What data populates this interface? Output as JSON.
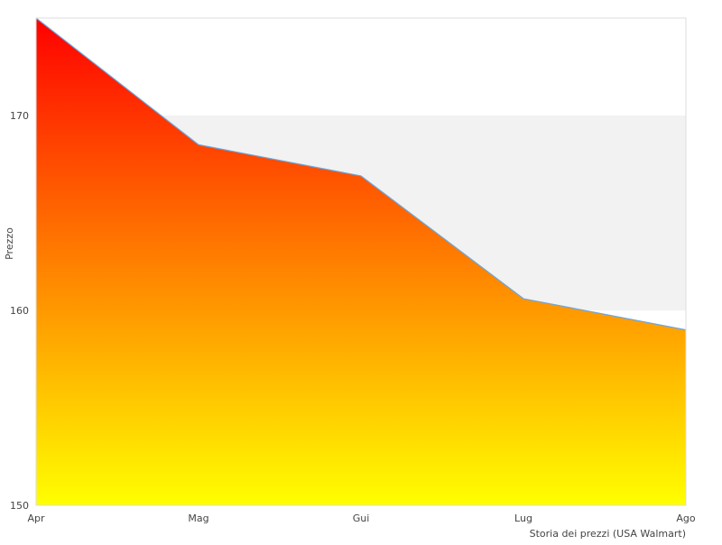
{
  "chart_data": {
    "type": "area",
    "categories": [
      "Apr",
      "Mag",
      "Gui",
      "Lug",
      "Ago"
    ],
    "series": [
      {
        "values": [
          175,
          168.5,
          166.9,
          160.6,
          159
        ]
      }
    ],
    "ylabel": "Prezzo",
    "xlabel": "",
    "caption": "Storia dei prezzi (USA Walmart)",
    "ylim": [
      150,
      175
    ],
    "yticks": [
      150,
      160,
      170
    ],
    "shaded_band": [
      160,
      170
    ],
    "grid": false,
    "legend": "none",
    "colors": {
      "fill_top": "#ff0000",
      "fill_bottom": "#ffff00",
      "line": "#6aa6e0",
      "band": "#f2f2f2",
      "frame": "#dddddd",
      "text": "#444444"
    }
  }
}
